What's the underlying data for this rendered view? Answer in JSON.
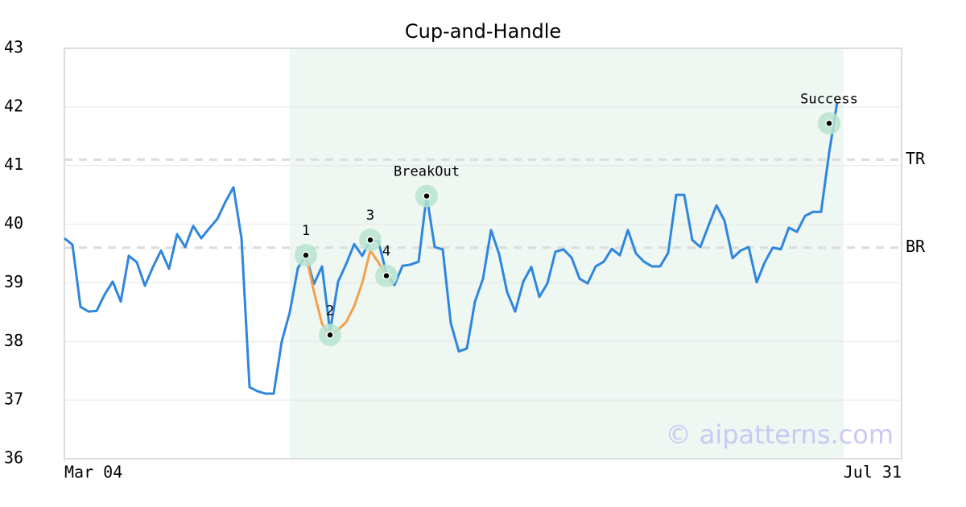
{
  "chart_data": {
    "type": "line",
    "title": "Cup-and-Handle",
    "x": [
      0,
      1,
      2,
      3,
      4,
      5,
      6,
      7,
      8,
      9,
      10,
      11,
      12,
      13,
      14,
      15,
      16,
      17,
      18,
      19,
      20,
      21,
      22,
      23,
      24,
      25,
      26,
      27,
      28,
      29,
      30,
      31,
      32,
      33,
      34,
      35,
      36,
      37,
      38,
      39,
      40,
      41,
      42,
      43,
      44,
      45,
      46,
      47,
      48,
      49,
      50,
      51,
      52,
      53,
      54,
      55,
      56,
      57,
      58,
      59,
      60,
      61,
      62,
      63,
      64,
      65,
      66,
      67,
      68,
      69,
      70,
      71,
      72,
      73,
      74,
      75,
      76,
      77,
      78,
      79,
      80,
      81,
      82,
      83,
      84,
      85,
      86,
      87,
      88,
      89,
      90,
      91,
      92,
      93,
      94,
      95,
      96
    ],
    "series": [
      {
        "color": "#2e86de",
        "values": [
          39.76,
          39.65,
          38.59,
          38.51,
          38.52,
          38.8,
          39.02,
          38.68,
          39.46,
          39.35,
          38.95,
          39.27,
          39.55,
          39.24,
          39.83,
          39.61,
          39.97,
          39.76,
          39.93,
          40.09,
          40.38,
          40.63,
          39.76,
          37.22,
          37.15,
          37.11,
          37.11,
          38.0,
          38.5,
          39.25,
          39.47,
          38.98,
          39.28,
          38.17,
          39.02,
          39.32,
          39.66,
          39.46,
          39.73,
          39.71,
          39.16,
          38.96,
          39.29,
          39.31,
          39.36,
          40.49,
          39.61,
          39.57,
          38.31,
          37.83,
          37.88,
          38.68,
          39.07,
          39.9,
          39.49,
          38.84,
          38.51,
          39.02,
          39.27,
          38.76,
          38.99,
          39.53,
          39.57,
          39.43,
          39.07,
          38.99,
          39.28,
          39.36,
          39.58,
          39.47,
          39.9,
          39.5,
          39.36,
          39.28,
          39.28,
          39.51,
          40.5,
          40.5,
          39.73,
          39.61,
          39.97,
          40.32,
          40.06,
          39.42,
          39.55,
          39.61,
          39.01,
          39.35,
          39.6,
          39.57,
          39.94,
          39.87,
          40.14,
          40.21,
          40.21,
          41.22,
          42.08
        ]
      },
      {
        "color": "#f5a04a",
        "x": [
          30,
          31,
          32,
          33,
          34,
          35,
          36,
          37,
          38,
          39,
          40
        ],
        "values": [
          39.47,
          38.85,
          38.3,
          38.1,
          38.2,
          38.33,
          38.6,
          39.0,
          39.55,
          39.35,
          39.12
        ]
      }
    ],
    "xlim": [
      0,
      104
    ],
    "xticks": [
      {
        "value": 0,
        "label": "Mar 04"
      },
      {
        "value": 104,
        "label": "Jul 31"
      }
    ],
    "ylim": [
      36,
      43
    ],
    "yticks": [
      36,
      37,
      38,
      39,
      40,
      41,
      42,
      43
    ],
    "grid": true,
    "shaded_xrange": [
      28,
      96.8
    ],
    "shade_color": "#eef7f2",
    "hlines": [
      {
        "label": "TR",
        "y": 41.1
      },
      {
        "label": "BR",
        "y": 39.6
      }
    ],
    "annotations": [
      {
        "label": "1",
        "x": 30,
        "y": 39.47
      },
      {
        "label": "2",
        "x": 33,
        "y": 38.11
      },
      {
        "label": "3",
        "x": 38,
        "y": 39.73
      },
      {
        "label": "4",
        "x": 40,
        "y": 39.12
      },
      {
        "label": "BreakOut",
        "x": 45,
        "y": 40.48
      },
      {
        "label": "Success",
        "x": 95,
        "y": 41.72
      }
    ],
    "watermark": "© aipatterns.com"
  }
}
